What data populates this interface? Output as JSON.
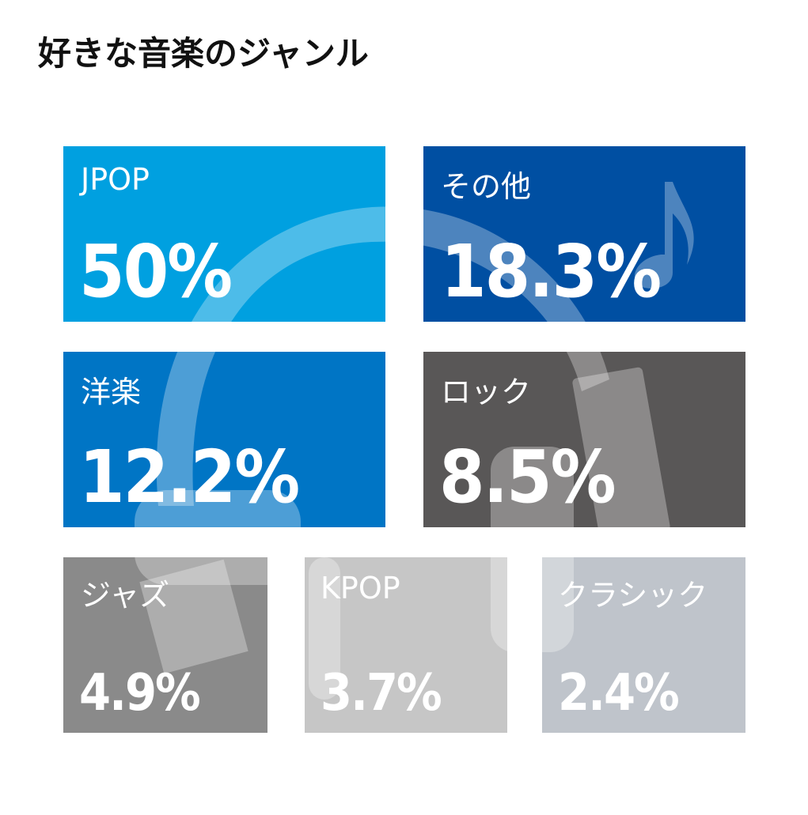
{
  "title": "好きな音楽のジャンル",
  "tiles": [
    {
      "label": "JPOP",
      "value": "50%"
    },
    {
      "label": "その他",
      "value": "18.3%"
    },
    {
      "label": "洋楽",
      "value": "12.2%"
    },
    {
      "label": "ロック",
      "value": "8.5%"
    },
    {
      "label": "ジャズ",
      "value": "4.9%"
    },
    {
      "label": "KPOP",
      "value": "3.7%"
    },
    {
      "label": "クラシック",
      "value": "2.4%"
    }
  ]
}
